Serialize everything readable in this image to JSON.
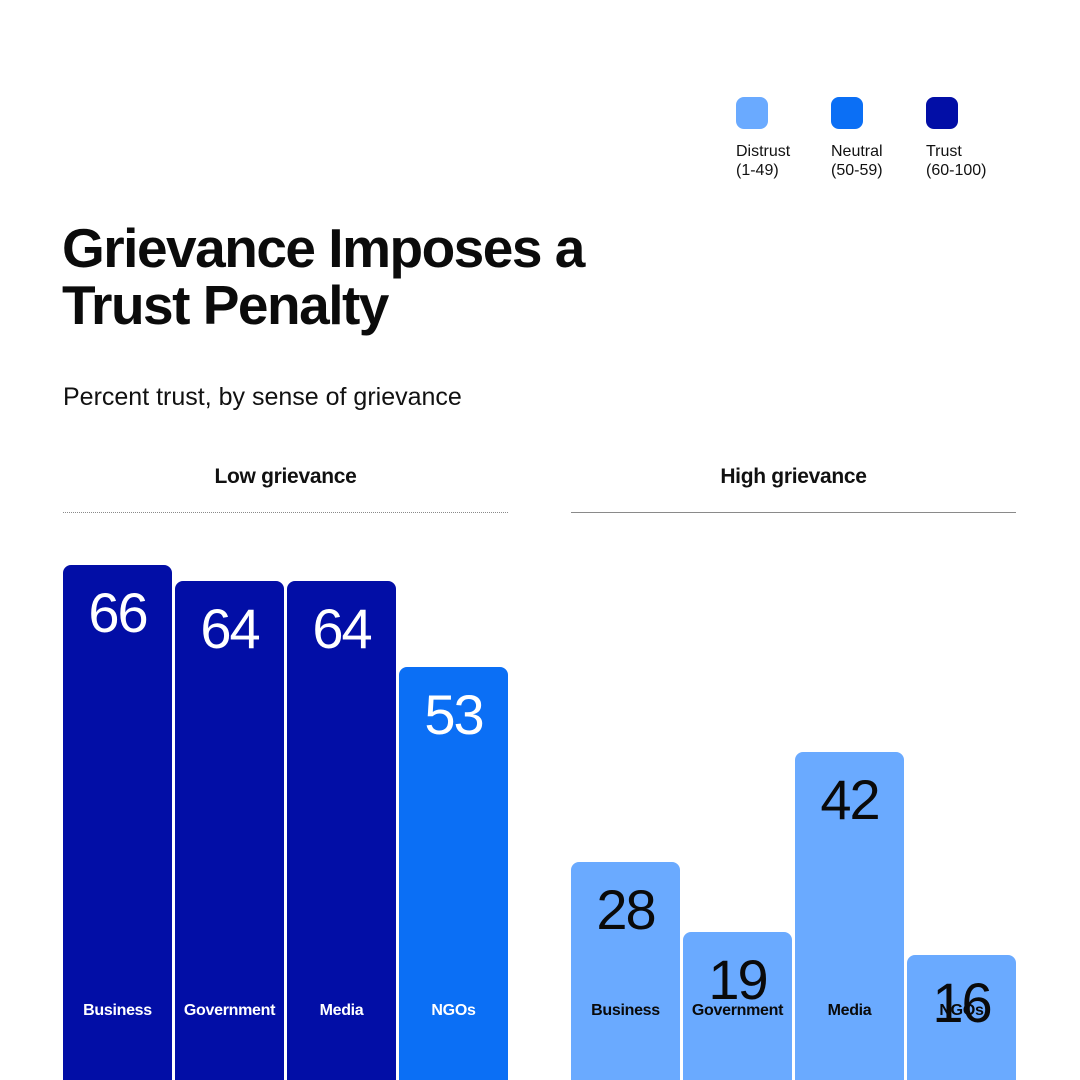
{
  "legend": [
    {
      "label": "Distrust\n(1-49)",
      "color": "#6aaaff"
    },
    {
      "label": "Neutral\n(50-59)",
      "color": "#0b6ff5"
    },
    {
      "label": "Trust\n(60-100)",
      "color": "#020ea6"
    }
  ],
  "chart_data": {
    "type": "bar",
    "title": "Grievance Imposes a Trust Penalty",
    "subtitle": "Percent trust, by sense of grievance",
    "categories": [
      "Business",
      "Government",
      "Media",
      "NGOs"
    ],
    "series": [
      {
        "name": "Low grievance",
        "values": [
          66,
          64,
          64,
          53
        ]
      },
      {
        "name": "High grievance",
        "values": [
          28,
          19,
          42,
          16
        ]
      }
    ],
    "ylim": [
      0,
      100
    ],
    "grid": false,
    "legend_position": "top-right",
    "color_scale": [
      {
        "range": [
          1,
          49
        ],
        "color": "#6aaaff"
      },
      {
        "range": [
          50,
          59
        ],
        "color": "#0b6ff5"
      },
      {
        "range": [
          60,
          100
        ],
        "color": "#020ea6"
      }
    ]
  }
}
